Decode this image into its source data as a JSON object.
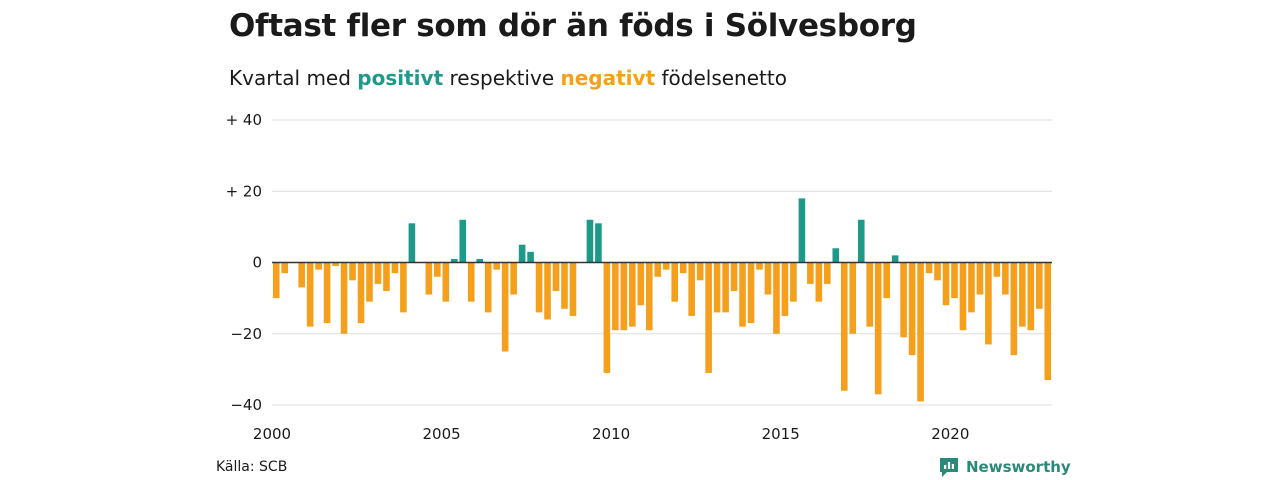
{
  "title": "Oftast fler som dör än föds i Sölvesborg",
  "subtitle": {
    "prefix": "Kvartal med",
    "positive": "positivt",
    "middle": "respektive",
    "negative": "negativt",
    "suffix": "födelsenetto"
  },
  "colors": {
    "positive": "#1f9a8a",
    "negative": "#f5a01d",
    "grid": "#dddddd",
    "baseline": "#333333",
    "brand": "#2a8a7a"
  },
  "source": "Källa: SCB",
  "brand": {
    "name": "Newsworthy",
    "icon": "newsworthy-logo-icon"
  },
  "chart_data": {
    "type": "bar",
    "title": "Oftast fler som dör än föds i Sölvesborg",
    "subtitle": "Kvartal med positivt respektive negativt födelsenetto",
    "xlabel": "",
    "ylabel": "",
    "x_start": "2000 Q1",
    "x_end": "2022 Q4",
    "ylim": [
      -40,
      40
    ],
    "y_ticks": [
      40,
      20,
      0,
      -20,
      -40
    ],
    "y_tick_labels": [
      "+ 40",
      "+ 20",
      "0",
      "−20",
      "−40"
    ],
    "x_tick_labels": [
      "2000",
      "2005",
      "2010",
      "2015",
      "2020"
    ],
    "grid": true,
    "legend": "none",
    "categories": [
      "2000 Q1",
      "2000 Q2",
      "2000 Q3",
      "2000 Q4",
      "2001 Q1",
      "2001 Q2",
      "2001 Q3",
      "2001 Q4",
      "2002 Q1",
      "2002 Q2",
      "2002 Q3",
      "2002 Q4",
      "2003 Q1",
      "2003 Q2",
      "2003 Q3",
      "2003 Q4",
      "2004 Q1",
      "2004 Q2",
      "2004 Q3",
      "2004 Q4",
      "2005 Q1",
      "2005 Q2",
      "2005 Q3",
      "2005 Q4",
      "2006 Q1",
      "2006 Q2",
      "2006 Q3",
      "2006 Q4",
      "2007 Q1",
      "2007 Q2",
      "2007 Q3",
      "2007 Q4",
      "2008 Q1",
      "2008 Q2",
      "2008 Q3",
      "2008 Q4",
      "2009 Q1",
      "2009 Q2",
      "2009 Q3",
      "2009 Q4",
      "2010 Q1",
      "2010 Q2",
      "2010 Q3",
      "2010 Q4",
      "2011 Q1",
      "2011 Q2",
      "2011 Q3",
      "2011 Q4",
      "2012 Q1",
      "2012 Q2",
      "2012 Q3",
      "2012 Q4",
      "2013 Q1",
      "2013 Q2",
      "2013 Q3",
      "2013 Q4",
      "2014 Q1",
      "2014 Q2",
      "2014 Q3",
      "2014 Q4",
      "2015 Q1",
      "2015 Q2",
      "2015 Q3",
      "2015 Q4",
      "2016 Q1",
      "2016 Q2",
      "2016 Q3",
      "2016 Q4",
      "2017 Q1",
      "2017 Q2",
      "2017 Q3",
      "2017 Q4",
      "2018 Q1",
      "2018 Q2",
      "2018 Q3",
      "2018 Q4",
      "2019 Q1",
      "2019 Q2",
      "2019 Q3",
      "2019 Q4",
      "2020 Q1",
      "2020 Q2",
      "2020 Q3",
      "2020 Q4",
      "2021 Q1",
      "2021 Q2",
      "2021 Q3",
      "2021 Q4",
      "2022 Q1",
      "2022 Q2",
      "2022 Q3",
      "2022 Q4"
    ],
    "values": [
      -10,
      -3,
      0,
      -7,
      -18,
      -2,
      -17,
      -1,
      -20,
      -5,
      -17,
      -11,
      -6,
      -8,
      -3,
      -14,
      11,
      0,
      -9,
      -4,
      -11,
      1,
      12,
      -11,
      1,
      -14,
      -2,
      -25,
      -9,
      5,
      3,
      -14,
      -16,
      -8,
      -13,
      -15,
      0,
      12,
      11,
      -31,
      -19,
      -19,
      -18,
      -12,
      -19,
      -4,
      -2,
      -11,
      -3,
      -15,
      -5,
      -31,
      -14,
      -14,
      -8,
      -18,
      -17,
      -2,
      -9,
      -20,
      -15,
      -11,
      18,
      -6,
      -11,
      -6,
      4,
      -36,
      -20,
      12,
      -18,
      -37,
      -10,
      2,
      -21,
      -26,
      -39,
      -3,
      -5,
      -12,
      -10,
      -19,
      -14,
      -9,
      -23,
      -4,
      -9,
      -26,
      -18,
      -19,
      -13,
      -33
    ]
  }
}
